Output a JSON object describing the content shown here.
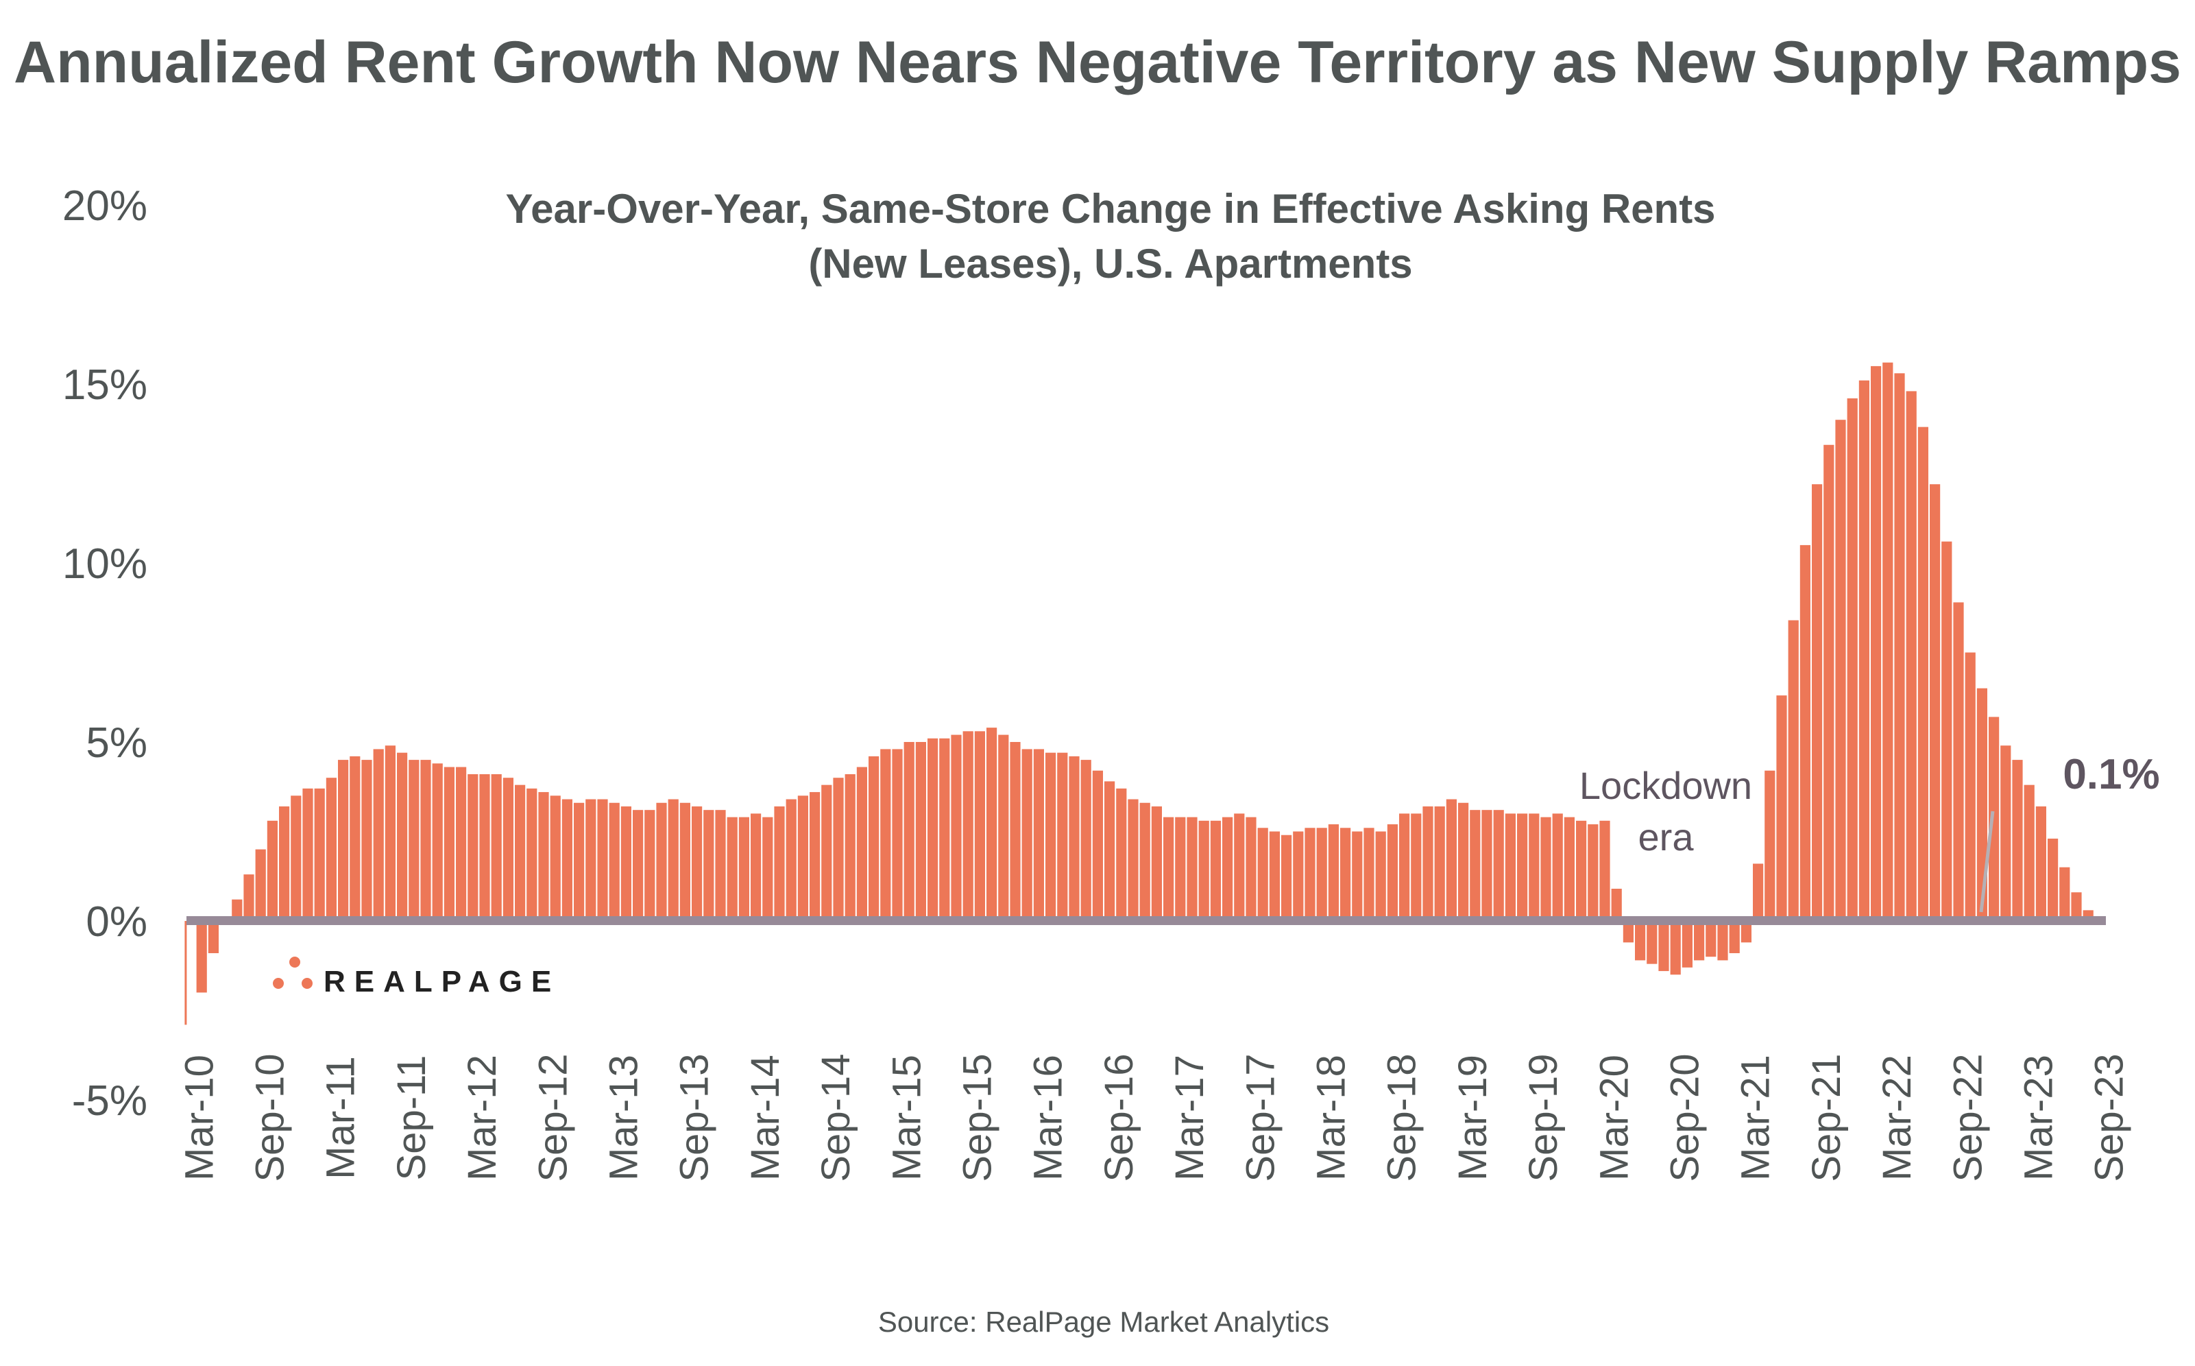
{
  "title": "Annualized Rent Growth Now Nears Negative Territory as New Supply Ramps",
  "source": "Source: RealPage Market Analytics",
  "logo_text": "REALPAGE",
  "colors": {
    "bar": "#ED7757",
    "zero_line": "#978A98",
    "text": "#505555",
    "annotation": "#5E5560"
  },
  "chart_data": {
    "type": "bar",
    "title": "Year-Over-Year, Same-Store Change in Effective Asking Rents",
    "subtitle": "(New Leases), U.S. Apartments",
    "xlabel": "",
    "ylabel": "",
    "ylim": [
      -5,
      20
    ],
    "yticks": [
      "-5%",
      "0%",
      "5%",
      "10%",
      "15%",
      "20%"
    ],
    "ytick_values": [
      -5,
      0,
      5,
      10,
      15,
      20
    ],
    "grid": false,
    "x_start": "Mar-10",
    "x_end": "Sep-23",
    "xtick_labels": [
      "Mar-10",
      "Sep-10",
      "Mar-11",
      "Sep-11",
      "Mar-12",
      "Sep-12",
      "Mar-13",
      "Sep-13",
      "Mar-14",
      "Sep-14",
      "Mar-15",
      "Sep-15",
      "Mar-16",
      "Sep-16",
      "Mar-17",
      "Sep-17",
      "Mar-18",
      "Sep-18",
      "Mar-19",
      "Sep-19",
      "Mar-20",
      "Sep-20",
      "Mar-21",
      "Sep-21",
      "Mar-22",
      "Sep-22",
      "Mar-23",
      "Sep-23"
    ],
    "values": [
      -2.9,
      -2.0,
      -0.9,
      0.1,
      0.6,
      1.3,
      2.0,
      2.8,
      3.2,
      3.5,
      3.7,
      3.7,
      4.0,
      4.5,
      4.6,
      4.5,
      4.8,
      4.9,
      4.7,
      4.5,
      4.5,
      4.4,
      4.3,
      4.3,
      4.1,
      4.1,
      4.1,
      4.0,
      3.8,
      3.7,
      3.6,
      3.5,
      3.4,
      3.3,
      3.4,
      3.4,
      3.3,
      3.2,
      3.1,
      3.1,
      3.3,
      3.4,
      3.3,
      3.2,
      3.1,
      3.1,
      2.9,
      2.9,
      3.0,
      2.9,
      3.2,
      3.4,
      3.5,
      3.6,
      3.8,
      4.0,
      4.1,
      4.3,
      4.6,
      4.8,
      4.8,
      5.0,
      5.0,
      5.1,
      5.1,
      5.2,
      5.3,
      5.3,
      5.4,
      5.2,
      5.0,
      4.8,
      4.8,
      4.7,
      4.7,
      4.6,
      4.5,
      4.2,
      3.9,
      3.7,
      3.4,
      3.3,
      3.2,
      2.9,
      2.9,
      2.9,
      2.8,
      2.8,
      2.9,
      3.0,
      2.9,
      2.6,
      2.5,
      2.4,
      2.5,
      2.6,
      2.6,
      2.7,
      2.6,
      2.5,
      2.6,
      2.5,
      2.7,
      3.0,
      3.0,
      3.2,
      3.2,
      3.4,
      3.3,
      3.1,
      3.1,
      3.1,
      3.0,
      3.0,
      3.0,
      2.9,
      3.0,
      2.9,
      2.8,
      2.7,
      2.8,
      0.9,
      -0.6,
      -1.1,
      -1.2,
      -1.4,
      -1.5,
      -1.3,
      -1.1,
      -1.0,
      -1.1,
      -0.9,
      -0.6,
      1.6,
      4.2,
      6.3,
      8.4,
      10.5,
      12.2,
      13.3,
      14.0,
      14.6,
      15.1,
      15.5,
      15.6,
      15.3,
      14.8,
      13.8,
      12.2,
      10.6,
      8.9,
      7.5,
      6.5,
      5.7,
      4.9,
      4.5,
      3.8,
      3.2,
      2.3,
      1.5,
      0.8,
      0.3,
      0.1
    ],
    "annotations": [
      {
        "text_line1": "Lockdown",
        "text_line2": "era"
      },
      {
        "text": "0.1%"
      }
    ]
  }
}
